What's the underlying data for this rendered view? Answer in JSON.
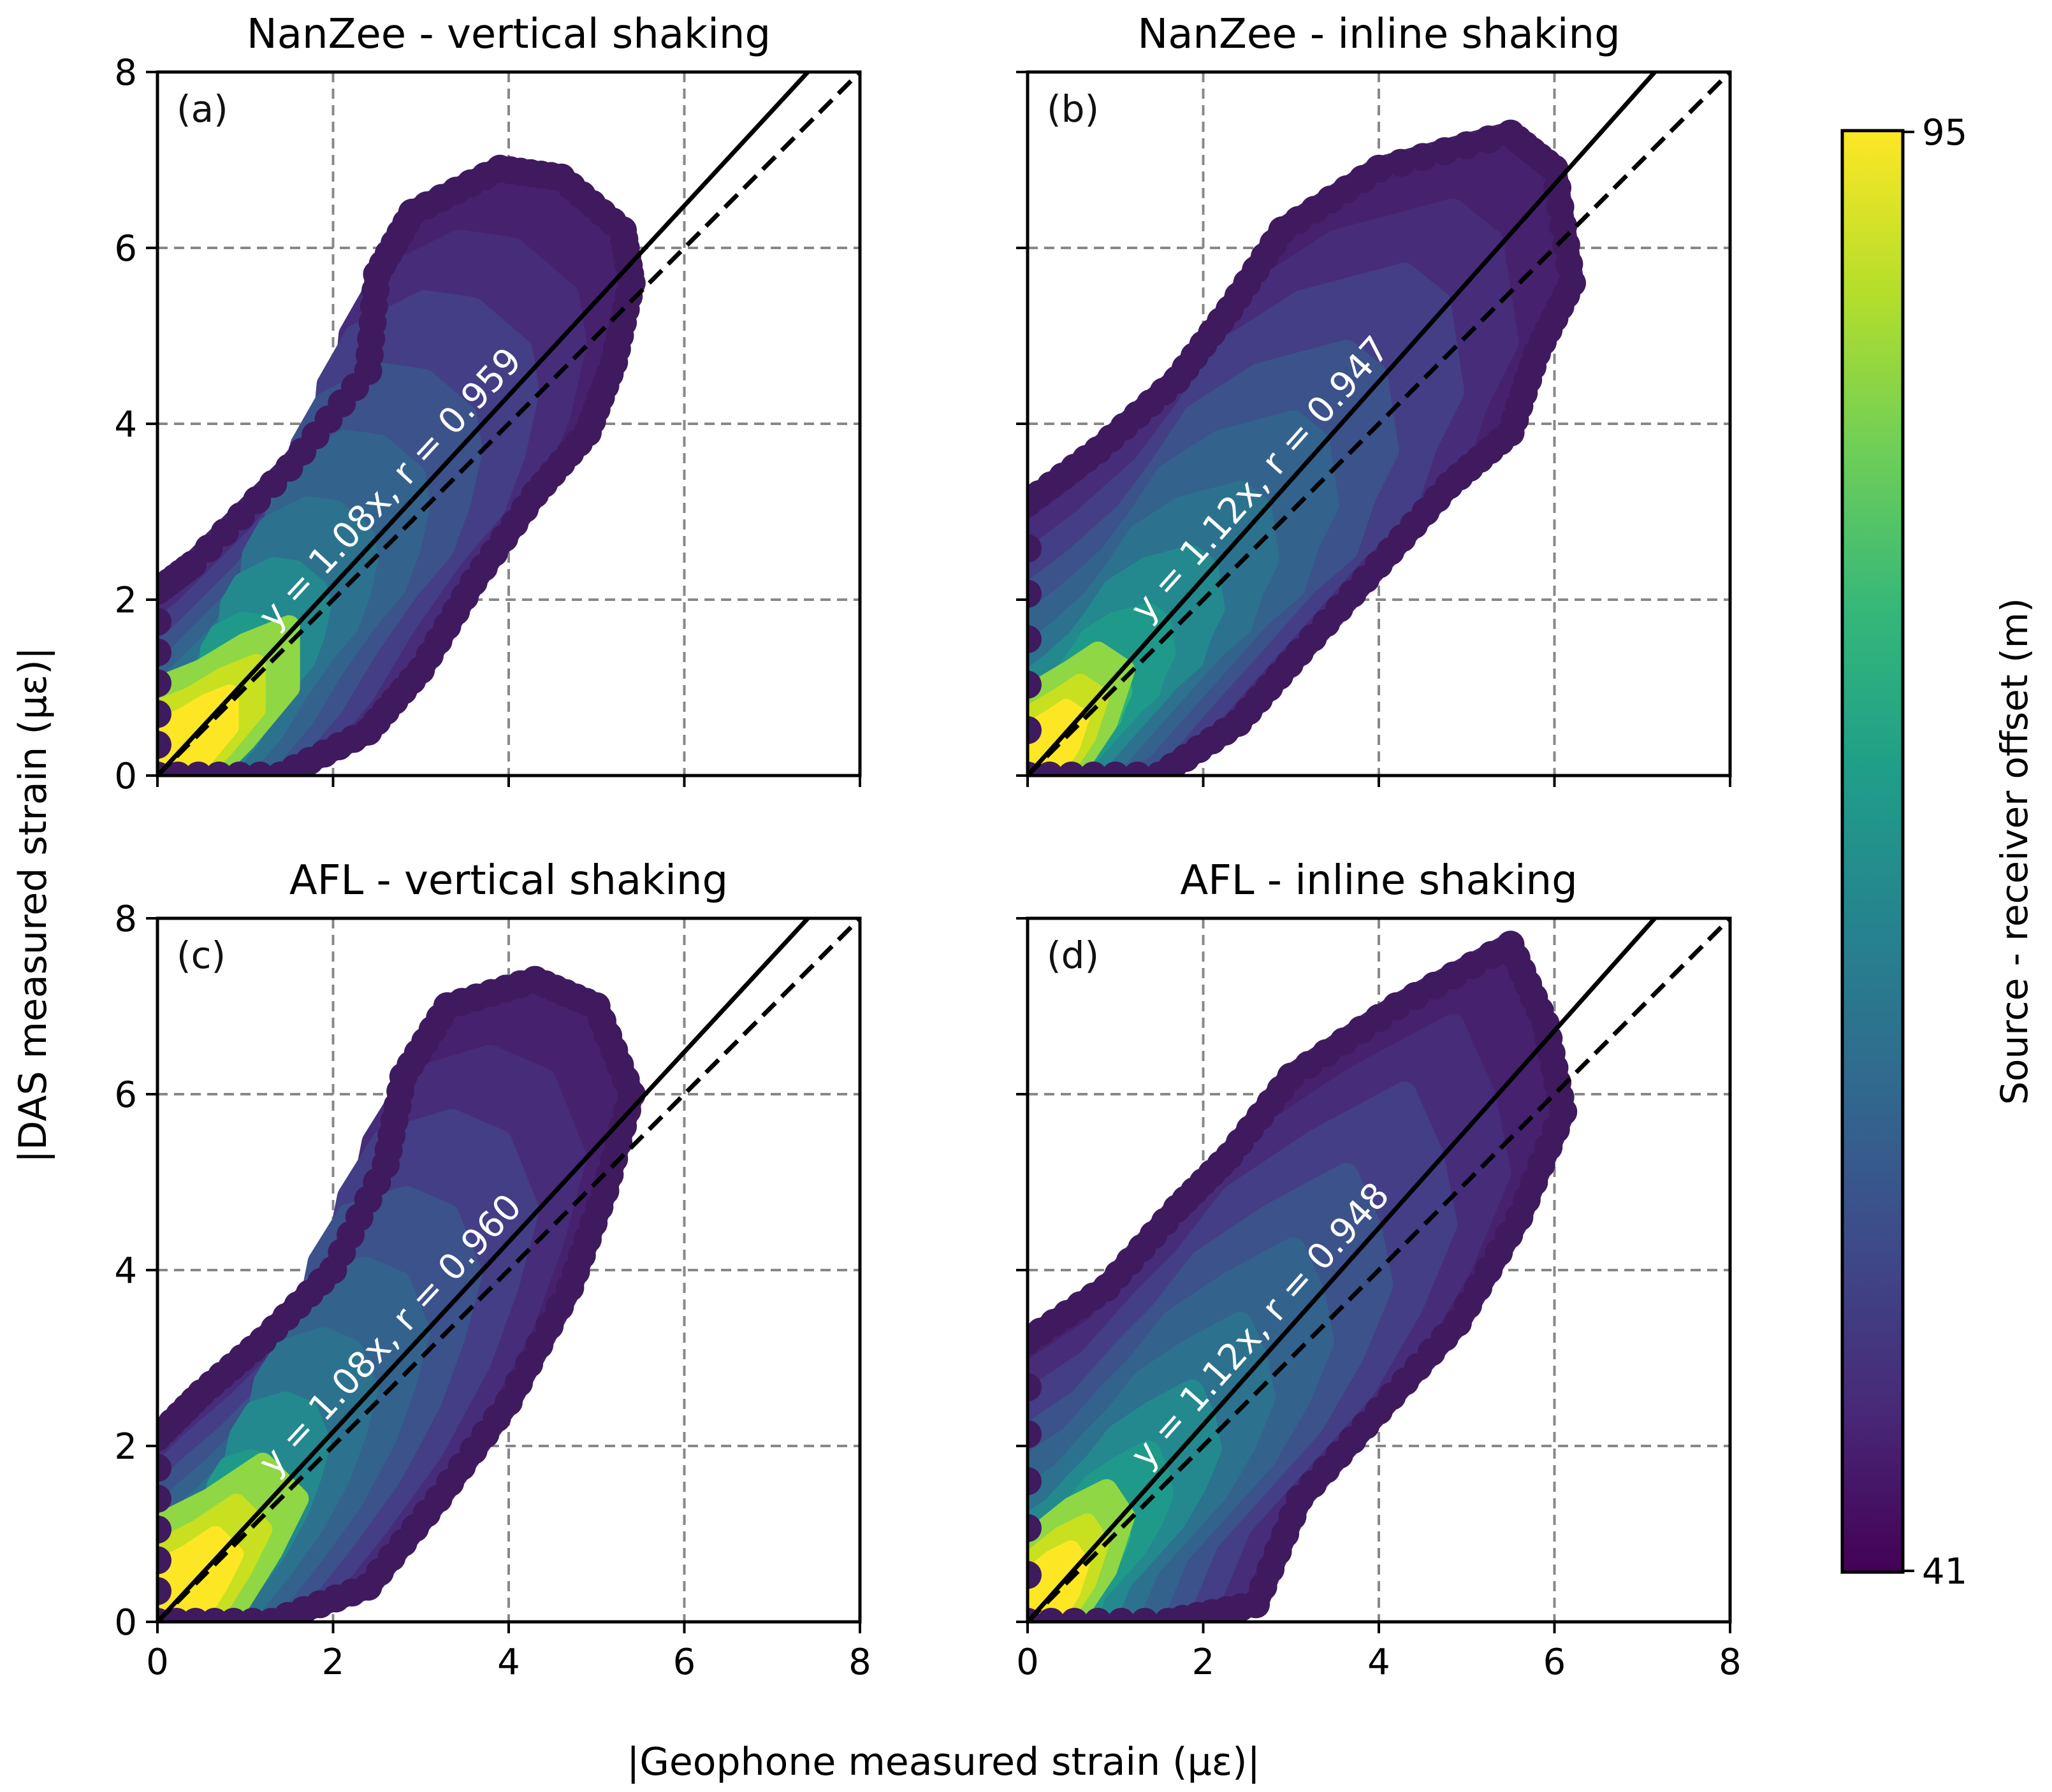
{
  "chart_data": {
    "type": "scatter",
    "xlabel": "|Geophone measured strain (με)|",
    "ylabel": "|DAS measured strain (με)|",
    "xlim": [
      0,
      8
    ],
    "ylim": [
      0,
      8
    ],
    "ticks": [
      "0",
      "2",
      "4",
      "6",
      "8"
    ],
    "grid": true,
    "colorbar": {
      "label": "Source - receiver offset (m)",
      "min": 41,
      "max": 95,
      "min_label": "41",
      "max_label": "95",
      "colormap": "viridis",
      "colors": [
        "#440154",
        "#482878",
        "#3e4989",
        "#31688e",
        "#26828e",
        "#1f9e89",
        "#35b779",
        "#6ece58",
        "#b5de2b",
        "#fde725"
      ]
    },
    "panels": [
      {
        "id": "a",
        "panel_label": "(a)",
        "title": "NanZee - vertical shaking",
        "fit_slope": 1.08,
        "r": 0.959,
        "fit_label": "y = 1.08x,  r = 0.959",
        "outer_outline": [
          [
            0,
            0
          ],
          [
            0,
            2.1
          ],
          [
            0.4,
            2.4
          ],
          [
            1.5,
            3.5
          ],
          [
            2.4,
            4.6
          ],
          [
            2.5,
            5.7
          ],
          [
            2.9,
            6.4
          ],
          [
            3.9,
            6.9
          ],
          [
            4.6,
            6.8
          ],
          [
            5.3,
            6.2
          ],
          [
            5.4,
            5.6
          ],
          [
            5.2,
            4.7
          ],
          [
            4.9,
            3.9
          ],
          [
            4.3,
            3.2
          ],
          [
            3.6,
            2.2
          ],
          [
            3.0,
            1.2
          ],
          [
            2.4,
            0.5
          ],
          [
            1.4,
            0
          ]
        ],
        "yellow_core": [
          [
            0,
            0
          ],
          [
            0,
            1.0
          ],
          [
            0.5,
            1.2
          ],
          [
            1.0,
            1.5
          ],
          [
            1.5,
            1.7
          ],
          [
            1.5,
            1.0
          ],
          [
            1.0,
            0.4
          ],
          [
            0.6,
            0
          ]
        ]
      },
      {
        "id": "b",
        "panel_label": "(b)",
        "title": "NanZee - inline shaking",
        "fit_slope": 1.12,
        "r": 0.947,
        "fit_label": "y = 1.12x,  r = 0.947",
        "outer_outline": [
          [
            0,
            0
          ],
          [
            0,
            3.1
          ],
          [
            0.8,
            3.7
          ],
          [
            1.7,
            4.5
          ],
          [
            2.3,
            5.3
          ],
          [
            2.9,
            6.2
          ],
          [
            4.0,
            6.9
          ],
          [
            5.5,
            7.3
          ],
          [
            6.0,
            6.9
          ],
          [
            6.2,
            5.6
          ],
          [
            5.8,
            4.8
          ],
          [
            5.5,
            3.9
          ],
          [
            4.8,
            3.3
          ],
          [
            4.0,
            2.4
          ],
          [
            3.1,
            1.4
          ],
          [
            2.4,
            0.6
          ],
          [
            1.5,
            0
          ]
        ],
        "yellow_core": [
          [
            0,
            0
          ],
          [
            0,
            0.9
          ],
          [
            0.5,
            1.2
          ],
          [
            0.8,
            1.4
          ],
          [
            1.1,
            1.2
          ],
          [
            0.9,
            0.6
          ],
          [
            0.5,
            0
          ]
        ]
      },
      {
        "id": "c",
        "panel_label": "(c)",
        "title": "AFL - vertical shaking",
        "fit_slope": 1.08,
        "r": 0.96,
        "fit_label": "y = 1.08x,  r = 0.960",
        "outer_outline": [
          [
            0,
            0
          ],
          [
            0,
            2.1
          ],
          [
            0.5,
            2.6
          ],
          [
            1.2,
            3.2
          ],
          [
            2.0,
            4.0
          ],
          [
            2.6,
            5.2
          ],
          [
            2.8,
            6.2
          ],
          [
            3.3,
            7.0
          ],
          [
            4.3,
            7.3
          ],
          [
            5.0,
            7.0
          ],
          [
            5.4,
            6.0
          ],
          [
            5.1,
            4.9
          ],
          [
            4.7,
            3.8
          ],
          [
            4.0,
            2.5
          ],
          [
            3.2,
            1.4
          ],
          [
            2.4,
            0.4
          ],
          [
            1.3,
            0
          ]
        ],
        "yellow_core": [
          [
            0,
            0
          ],
          [
            0,
            1.1
          ],
          [
            0.6,
            1.4
          ],
          [
            1.2,
            1.8
          ],
          [
            1.6,
            1.4
          ],
          [
            1.3,
            0.8
          ],
          [
            0.8,
            0
          ]
        ]
      },
      {
        "id": "d",
        "panel_label": "(d)",
        "title": "AFL - inline shaking",
        "fit_slope": 1.12,
        "r": 0.948,
        "fit_label": "y = 1.12x,  r = 0.948",
        "outer_outline": [
          [
            0,
            0
          ],
          [
            0,
            3.2
          ],
          [
            0.9,
            3.8
          ],
          [
            1.7,
            4.7
          ],
          [
            2.3,
            5.3
          ],
          [
            3.0,
            6.2
          ],
          [
            4.2,
            7.0
          ],
          [
            5.5,
            7.7
          ],
          [
            5.9,
            6.8
          ],
          [
            6.1,
            5.8
          ],
          [
            5.6,
            4.6
          ],
          [
            4.9,
            3.4
          ],
          [
            4.0,
            2.4
          ],
          [
            3.1,
            1.4
          ],
          [
            2.6,
            0.2
          ],
          [
            1.6,
            0
          ]
        ],
        "yellow_core": [
          [
            0,
            0
          ],
          [
            0,
            0.9
          ],
          [
            0.5,
            1.3
          ],
          [
            0.9,
            1.5
          ],
          [
            1.1,
            1.2
          ],
          [
            0.9,
            0.6
          ],
          [
            0.5,
            0
          ]
        ]
      }
    ]
  }
}
